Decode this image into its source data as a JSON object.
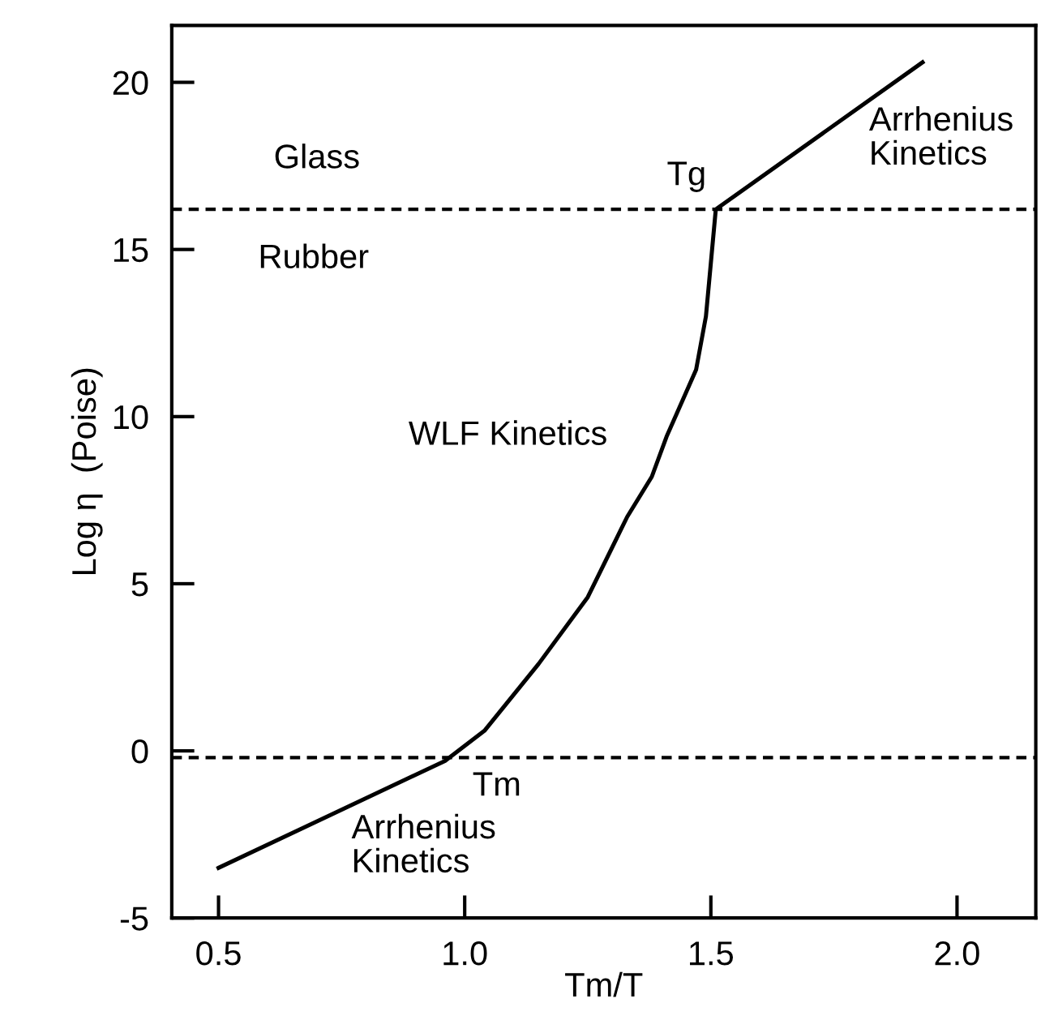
{
  "chart_data": {
    "type": "line",
    "xlabel": "Tm/T",
    "ylabel": "Log η  (Poise)",
    "x": [
      0.5,
      0.96,
      1.04,
      1.15,
      1.25,
      1.33,
      1.38,
      1.41,
      1.47,
      1.49,
      1.5,
      1.51,
      1.93
    ],
    "series": [
      {
        "color": "#000000",
        "values": [
          -3.5,
          -0.3,
          0.6,
          2.6,
          4.6,
          7.0,
          8.2,
          9.4,
          11.4,
          13.0,
          14.6,
          16.2,
          20.6
        ]
      }
    ],
    "xlim": [
      0.405,
      2.16
    ],
    "ylim": [
      -5,
      21.7
    ],
    "xticks": [
      0.5,
      {
        "value": 1.0,
        "label": "1.0"
      },
      1.5,
      {
        "value": 2.0,
        "label": "2.0"
      }
    ],
    "yticks": [
      {
        "value": -5,
        "label": "-5"
      },
      0,
      5,
      10,
      15,
      20
    ],
    "ref_lines": [
      {
        "axis": "y",
        "value": 16.2,
        "line_style": "dashed"
      },
      {
        "axis": "y",
        "value": -0.2,
        "line_style": "dashed"
      }
    ],
    "annotations": [
      "Glass",
      "Rubber",
      "WLF Kinetics",
      "Tg",
      "Arrhenius\nKinetics",
      "Tm",
      "Arrhenius\nKinetics"
    ],
    "grid": false,
    "legend": false,
    "marker": "none",
    "line_style": "solid"
  }
}
